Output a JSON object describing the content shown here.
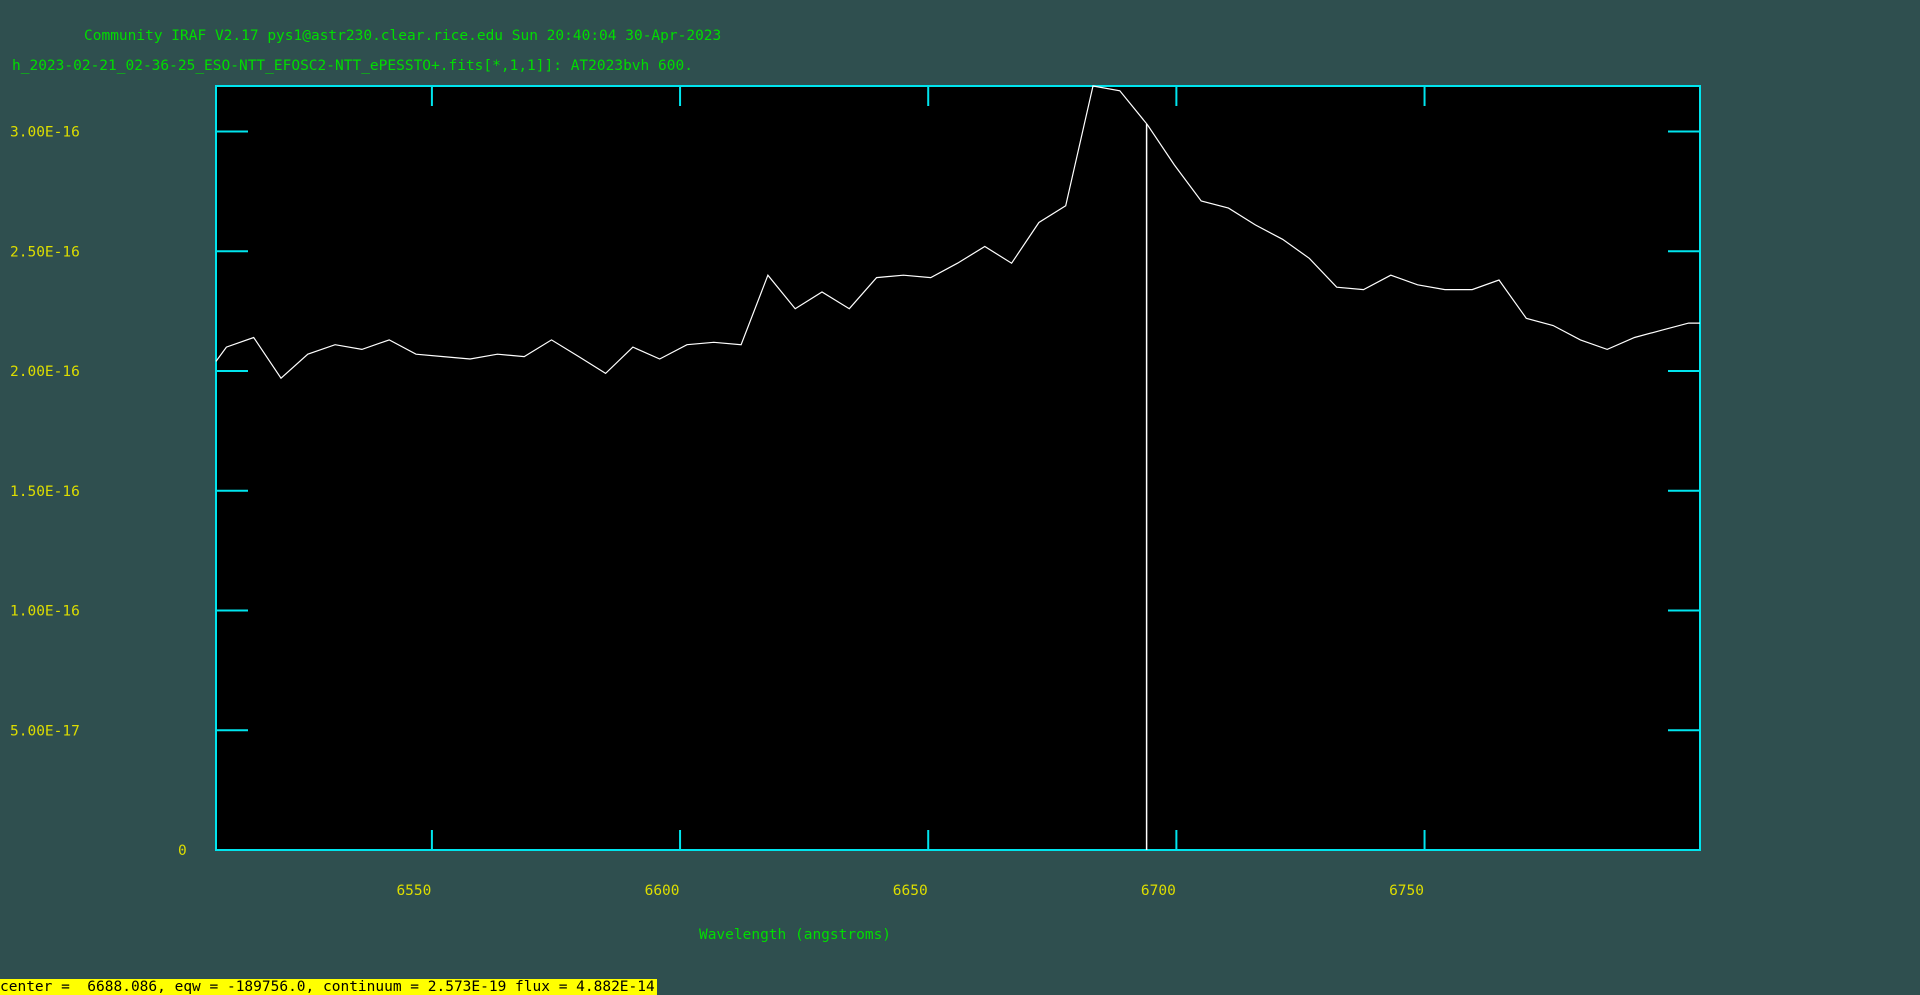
{
  "window": {
    "header_line1": "Community IRAF V2.17 pys1@astr230.clear.rice.edu Sun 20:40:04 30-Apr-2023",
    "header_line2": "h_2023-02-21_02-36-25_ESO-NTT_EFOSC2-NTT_ePESSTO+.fits[*,1,1]]: AT2023bvh 600.",
    "status": "center =  6688.086, eqw = -189756.0, continuum = 2.573E-19 flux = 4.882E-14"
  },
  "colors": {
    "background": "#2f4f4f",
    "plot_area": "#000000",
    "frame": "#00e5ee",
    "header_text": "#00dd00",
    "axis_text": "#dddd00",
    "spectrum": "#ffffff",
    "marker": "#ffffff",
    "status_bg": "#ffff00",
    "status_text": "#000000"
  },
  "chart_data": {
    "type": "line",
    "title": "h_2023-02-21_02-36-25_ESO-NTT_EFOSC2-NTT_ePESSTO+.fits[*,1,1]]: AT2023bvh 600.",
    "xlabel": "Wavelength (angstroms)",
    "ylabel": "",
    "xlim": [
      6506.5,
      6805.5
    ],
    "ylim": [
      0,
      3.19e-16
    ],
    "x_ticks": [
      6550,
      6600,
      6650,
      6700,
      6750
    ],
    "x_tick_labels": [
      "6550",
      "6600",
      "6650",
      "6700",
      "6750"
    ],
    "y_ticks": [
      0,
      5e-17,
      1e-16,
      1.5e-16,
      2e-16,
      2.5e-16,
      3e-16
    ],
    "y_tick_labels": [
      "0",
      "5.00E-17",
      "1.00E-16",
      "1.50E-16",
      "2.00E-16",
      "2.50E-16",
      "3.00E-16"
    ],
    "grid": false,
    "marker_line_x": 6694,
    "series": [
      {
        "x": [
          6506.5,
          6508.6,
          6514.1,
          6519.6,
          6525.0,
          6530.5,
          6535.9,
          6541.4,
          6546.8,
          6552.3,
          6557.7,
          6563.2,
          6568.6,
          6574.1,
          6579.6,
          6585.0,
          6590.5,
          6595.9,
          6601.4,
          6606.8,
          6612.3,
          6617.7,
          6623.2,
          6628.6,
          6634.1,
          6639.6,
          6645.0,
          6650.5,
          6655.9,
          6661.4,
          6666.8,
          6672.3,
          6677.7,
          6683.2,
          6688.6,
          6694.1,
          6699.6,
          6705.0,
          6710.5,
          6715.9,
          6721.4,
          6726.8,
          6732.3,
          6737.7,
          6743.2,
          6748.6,
          6754.1,
          6759.6,
          6765.0,
          6770.5,
          6775.9,
          6781.4,
          6786.8,
          6792.3,
          6797.7,
          6803.2,
          6805.5
        ],
        "values": [
          2.04e-16,
          2.1e-16,
          2.14e-16,
          1.97e-16,
          2.07e-16,
          2.11e-16,
          2.09e-16,
          2.13e-16,
          2.07e-16,
          2.06e-16,
          2.05e-16,
          2.07e-16,
          2.06e-16,
          2.13e-16,
          2.06e-16,
          1.99e-16,
          2.1e-16,
          2.05e-16,
          2.11e-16,
          2.12e-16,
          2.11e-16,
          2.4e-16,
          2.26e-16,
          2.33e-16,
          2.26e-16,
          2.39e-16,
          2.4e-16,
          2.39e-16,
          2.45e-16,
          2.52e-16,
          2.45e-16,
          2.62e-16,
          2.69e-16,
          3.19e-16,
          3.17e-16,
          3.03e-16,
          2.86e-16,
          2.71e-16,
          2.68e-16,
          2.61e-16,
          2.55e-16,
          2.47e-16,
          2.35e-16,
          2.34e-16,
          2.4e-16,
          2.36e-16,
          2.34e-16,
          2.34e-16,
          2.38e-16,
          2.22e-16,
          2.19e-16,
          2.13e-16,
          2.09e-16,
          2.14e-16,
          2.17e-16,
          2.2e-16,
          2.2e-16
        ]
      }
    ]
  }
}
